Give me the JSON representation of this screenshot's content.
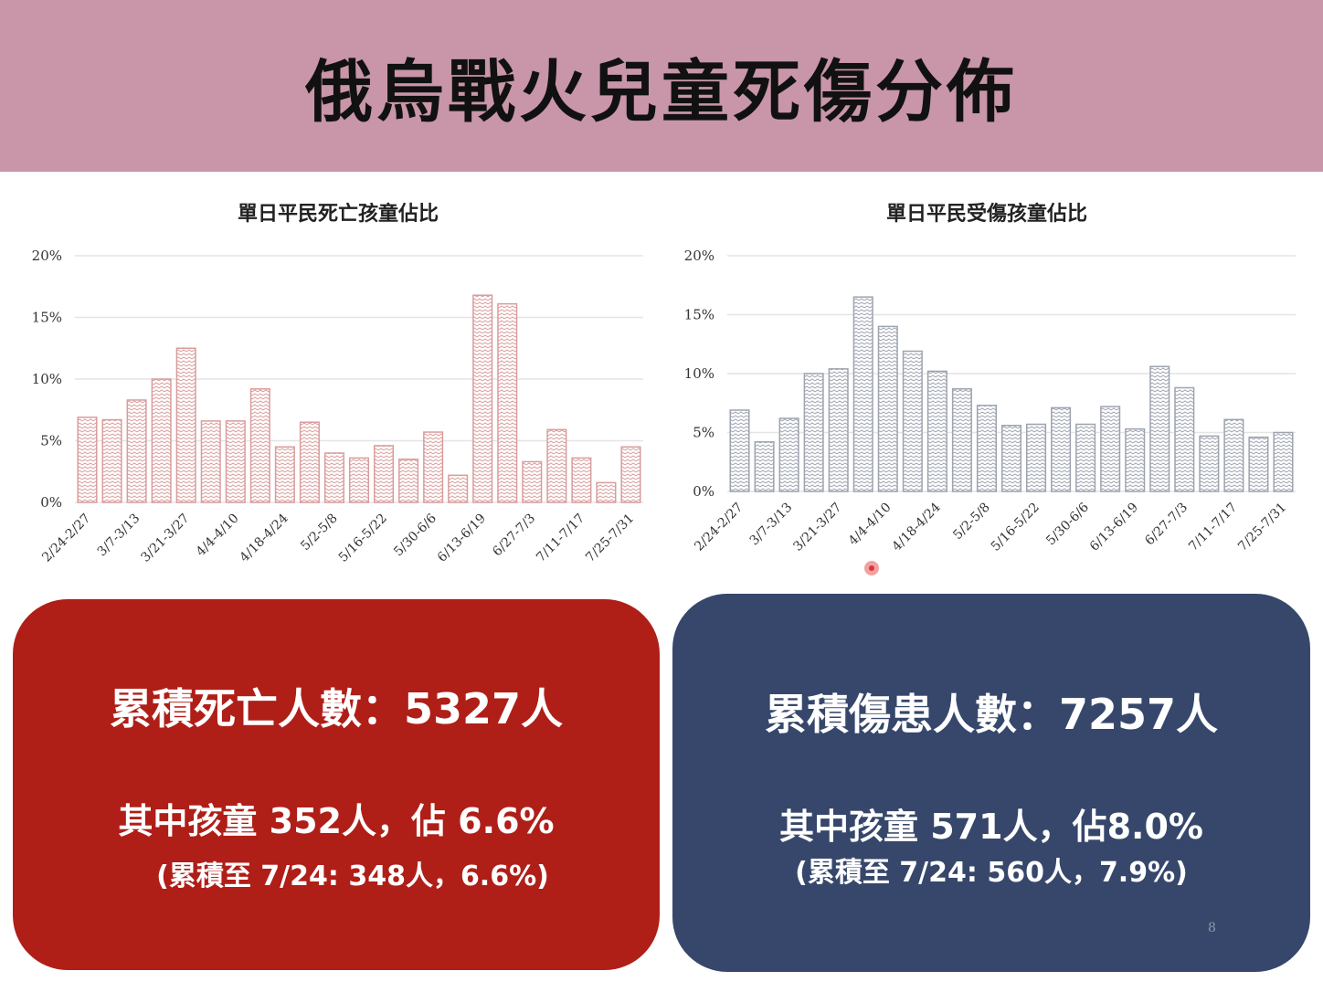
{
  "title": "俄烏戰火兒童死傷分佈",
  "chart_data": [
    {
      "type": "bar",
      "title": "單日平民死亡孩童佔比",
      "categories": [
        "2/24-2/27",
        "",
        "3/7-3/13",
        "",
        "3/21-3/27",
        "",
        "4/4-4/10",
        "",
        "4/18-4/24",
        "",
        "5/2-5/8",
        "",
        "5/16-5/22",
        "",
        "5/30-6/6",
        "",
        "6/13-6/19",
        "",
        "6/27-7/3",
        "",
        "7/11-7/17",
        "",
        "7/25-7/31"
      ],
      "values": [
        6.9,
        6.7,
        8.3,
        10.0,
        12.5,
        6.6,
        6.6,
        9.2,
        4.5,
        6.5,
        4.0,
        3.6,
        4.6,
        3.5,
        5.7,
        2.2,
        16.8,
        16.1,
        3.3,
        5.9,
        3.6,
        1.6,
        4.5
      ],
      "ylim": [
        0,
        20
      ],
      "yticks": [
        "0%",
        "5%",
        "10%",
        "15%",
        "20%"
      ],
      "color": "#d99c9c",
      "grid": true
    },
    {
      "type": "bar",
      "title": "單日平民受傷孩童佔比",
      "categories": [
        "2/24-2/27",
        "",
        "3/7-3/13",
        "",
        "3/21-3/27",
        "",
        "4/4-4/10",
        "",
        "4/18-4/24",
        "",
        "5/2-5/8",
        "",
        "5/16-5/22",
        "",
        "5/30-6/6",
        "",
        "6/13-6/19",
        "",
        "6/27-7/3",
        "",
        "7/11-7/17",
        "",
        "7/25-7/31"
      ],
      "values": [
        6.9,
        4.2,
        6.2,
        10.0,
        10.4,
        16.5,
        14.0,
        11.9,
        10.2,
        8.7,
        7.3,
        5.6,
        5.7,
        7.1,
        5.7,
        7.2,
        5.3,
        10.6,
        8.8,
        4.7,
        6.1,
        4.6,
        5.0
      ],
      "ylim": [
        0,
        20
      ],
      "yticks": [
        "0%",
        "5%",
        "10%",
        "15%",
        "20%"
      ],
      "color": "#9da3af",
      "grid": true
    }
  ],
  "panels": {
    "deaths": {
      "main": "累積死亡人數：5327人",
      "sub": "其中孩童 352人，佔 6.6%",
      "note": "(累積至 7/24: 348人，6.6%)",
      "color": "#b01e18"
    },
    "injuries": {
      "main": "累積傷患人數：7257人",
      "sub": "其中孩童 571人，佔8.0%",
      "note": "(累積至 7/24: 560人，7.9%)",
      "color": "#36476b"
    }
  },
  "page_number": "8",
  "colors": {
    "header_bg": "#c895a9"
  }
}
